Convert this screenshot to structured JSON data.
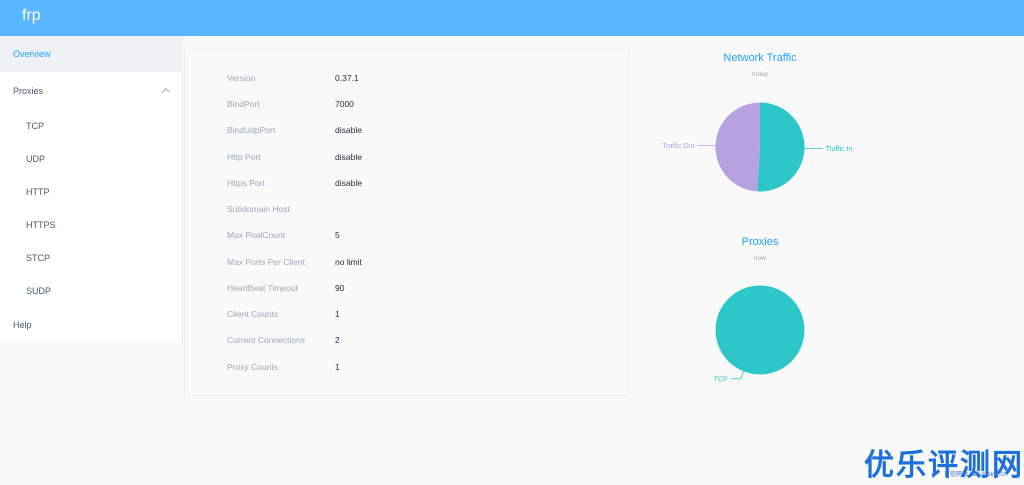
{
  "app": {
    "title": "frp"
  },
  "sidebar": {
    "items": [
      {
        "label": "Overview",
        "active": true
      },
      {
        "label": "Proxies",
        "expanded": true
      },
      {
        "label": "TCP"
      },
      {
        "label": "UDP"
      },
      {
        "label": "HTTP"
      },
      {
        "label": "HTTPS"
      },
      {
        "label": "STCP"
      },
      {
        "label": "SUDP"
      },
      {
        "label": "Help"
      }
    ]
  },
  "server_info": {
    "rows": [
      {
        "label": "Version",
        "value": "0.37.1"
      },
      {
        "label": "BindPort",
        "value": "7000"
      },
      {
        "label": "BindUdpPort",
        "value": "disable"
      },
      {
        "label": "Http Port",
        "value": "disable"
      },
      {
        "label": "Https Port",
        "value": "disable"
      },
      {
        "label": "Subdomain Host",
        "value": ""
      },
      {
        "label": "Max PoolCount",
        "value": "5"
      },
      {
        "label": "Max Ports Per Client",
        "value": "no limit"
      },
      {
        "label": "HeartBeat Timeout",
        "value": "90"
      },
      {
        "label": "Client Counts",
        "value": "1"
      },
      {
        "label": "Current Connections",
        "value": "2"
      },
      {
        "label": "Proxy Counts",
        "value": "1"
      }
    ]
  },
  "chart_data": [
    {
      "type": "pie",
      "title": "Network Traffic",
      "subtitle": "today",
      "slices": [
        {
          "name": "Traffic In",
          "value": 51,
          "color": "#2ec7c9"
        },
        {
          "name": "Traffic Out",
          "value": 49,
          "color": "#b6a2de"
        }
      ]
    },
    {
      "type": "pie",
      "title": "Proxies",
      "subtitle": "now",
      "slices": [
        {
          "name": "TCP",
          "value": 1,
          "color": "#2ec7c9"
        }
      ]
    }
  ],
  "watermark": {
    "text": "优乐评测网",
    "url": "可信网站 taolulublog.cn"
  }
}
